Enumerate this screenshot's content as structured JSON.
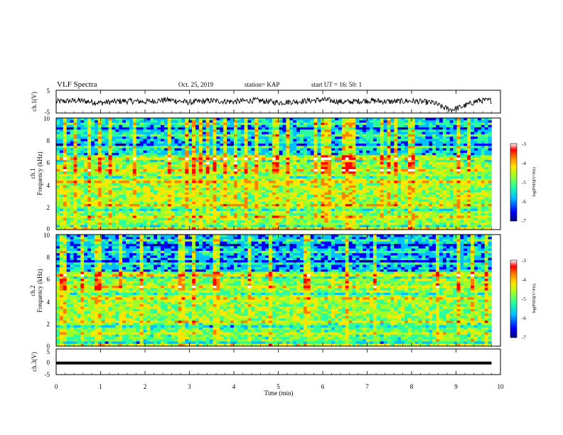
{
  "header": {
    "title": "VLF Spectra",
    "date": "Oct. 25, 2019",
    "station": "station= KAP",
    "start": "start  UT =   16: 50: 1"
  },
  "colors": {
    "spectrogram_scale": [
      "#00007f",
      "#0000ff",
      "#00bfff",
      "#2aff9b",
      "#9bff2a",
      "#ffe600",
      "#ff7f00",
      "#ff0000",
      "#ffffff"
    ],
    "trace": "#000000"
  },
  "chart_data": [
    {
      "type": "line",
      "panel": "ch1-waveform",
      "ylabel": "ch.1(V)",
      "ylim": [
        -5,
        5
      ],
      "yticks": [
        "5",
        "-5"
      ],
      "xlim": [
        0,
        10
      ],
      "description_values": {
        "x": [
          0,
          0.5,
          1,
          1.5,
          2,
          2.5,
          3,
          3.5,
          4,
          4.5,
          5,
          5.5,
          6,
          6.5,
          7,
          7.5,
          8,
          8.5,
          8.7,
          8.9,
          9.1,
          9.3,
          9.5,
          9.8
        ],
        "y": [
          0,
          0.5,
          -0.5,
          0.3,
          0,
          0.8,
          -0.3,
          0.4,
          0,
          0.6,
          -0.4,
          0.2,
          0.8,
          -0.2,
          0.5,
          0,
          0.3,
          -0.5,
          -2.5,
          -3.5,
          -2.5,
          -1,
          0.5,
          0.5
        ]
      }
    },
    {
      "type": "heatmap",
      "panel": "ch1-spectrogram",
      "ylabel": "ch.1\nFrequency (kHz)",
      "ylabel_line1": "ch.1",
      "ylabel_line2": "Frequency  (kHz)",
      "ylim": [
        0,
        10
      ],
      "yticks": [
        "0",
        "2",
        "4",
        "6",
        "8",
        "10"
      ],
      "xlim": [
        0,
        10
      ],
      "colorbar": {
        "range": [
          -7,
          -3
        ],
        "ticks": [
          "-3",
          "-4",
          "-5",
          "-6",
          "-7"
        ],
        "label": "log(PSD)(V²/Hz)"
      }
    },
    {
      "type": "heatmap",
      "panel": "ch2-spectrogram",
      "ylabel_line1": "ch.2",
      "ylabel_line2": "Frequency  (kHz)",
      "ylim": [
        0,
        10
      ],
      "yticks": [
        "0",
        "2",
        "4",
        "6",
        "8",
        "10"
      ],
      "xlim": [
        0,
        10
      ],
      "colorbar": {
        "range": [
          -7,
          -3
        ],
        "ticks": [
          "-3",
          "-4",
          "-5",
          "-6",
          "-7"
        ],
        "label": "log(PSD)(V²/Hz)"
      }
    },
    {
      "type": "line",
      "panel": "ch3-waveform",
      "ylabel": "ch.3(V)",
      "ylim": [
        -5,
        5
      ],
      "yticks": [
        "5",
        "0",
        "-5"
      ],
      "xlim": [
        0,
        10
      ],
      "x": [
        0,
        9.8
      ],
      "y": [
        -0.5,
        -0.5
      ],
      "xlabel": "Time  (min)",
      "xticks": [
        "0",
        "1",
        "2",
        "3",
        "4",
        "5",
        "6",
        "7",
        "8",
        "9",
        "10"
      ]
    }
  ]
}
